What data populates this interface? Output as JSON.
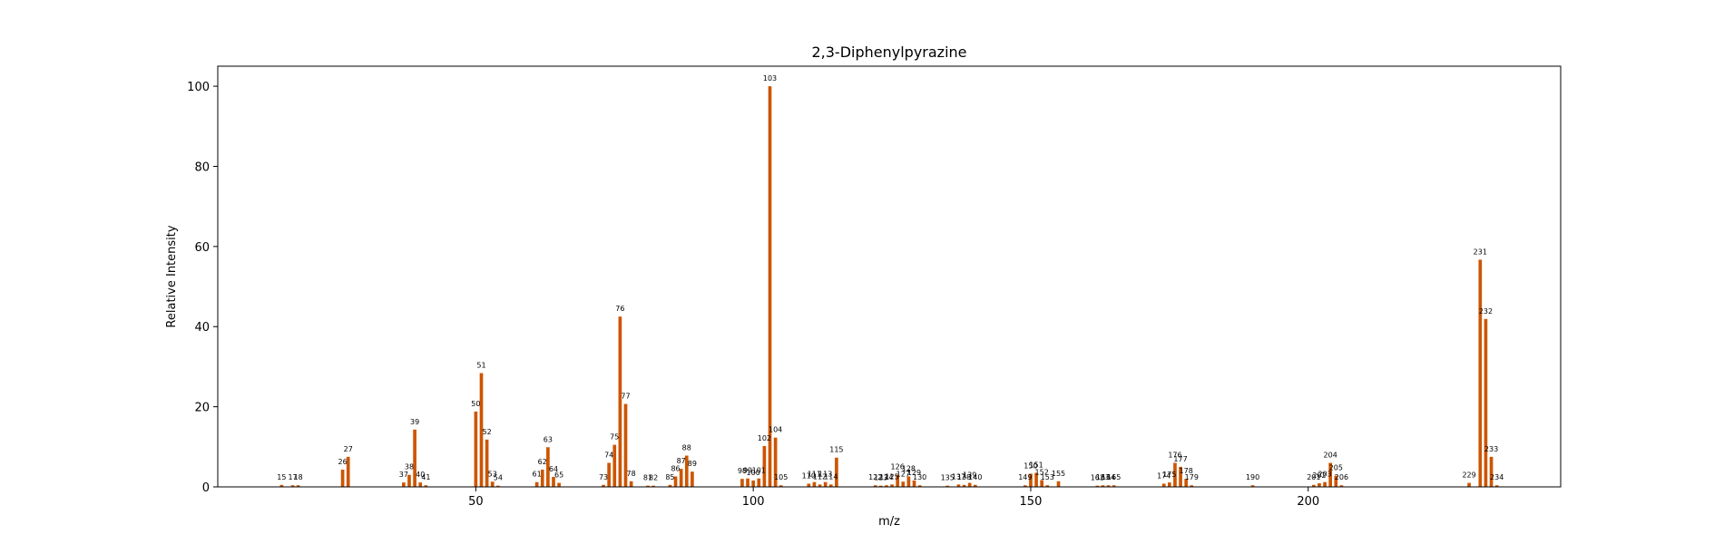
{
  "chart_data": {
    "type": "bar",
    "title": "2,3-Diphenylpyrazine",
    "xlabel": "m/z",
    "ylabel": "Relative Intensity",
    "xlim": [
      3.5,
      245.5
    ],
    "ylim": [
      0,
      105
    ],
    "xticks": [
      50,
      100,
      150,
      200
    ],
    "yticks": [
      0,
      20,
      40,
      60,
      80,
      100
    ],
    "bar_color": "#cc5500",
    "grid": false,
    "peaks": [
      {
        "mz": 15,
        "intensity": 0.5,
        "label": "15"
      },
      {
        "mz": 17,
        "intensity": 0.4,
        "label": "17"
      },
      {
        "mz": 18,
        "intensity": 0.4,
        "label": "18"
      },
      {
        "mz": 26,
        "intensity": 4.3,
        "label": "26"
      },
      {
        "mz": 27,
        "intensity": 7.5,
        "label": "27"
      },
      {
        "mz": 37,
        "intensity": 1.1,
        "label": "37"
      },
      {
        "mz": 38,
        "intensity": 3.0,
        "label": "38"
      },
      {
        "mz": 39,
        "intensity": 14.3,
        "label": "39"
      },
      {
        "mz": 40,
        "intensity": 1.1,
        "label": "40"
      },
      {
        "mz": 41,
        "intensity": 0.4,
        "label": "41"
      },
      {
        "mz": 50,
        "intensity": 18.8,
        "label": "50"
      },
      {
        "mz": 51,
        "intensity": 28.4,
        "label": "51"
      },
      {
        "mz": 52,
        "intensity": 11.8,
        "label": "52"
      },
      {
        "mz": 53,
        "intensity": 1.3,
        "label": "53"
      },
      {
        "mz": 54,
        "intensity": 0.3,
        "label": "54"
      },
      {
        "mz": 61,
        "intensity": 1.2,
        "label": "61"
      },
      {
        "mz": 62,
        "intensity": 4.3,
        "label": "62"
      },
      {
        "mz": 63,
        "intensity": 9.9,
        "label": "63"
      },
      {
        "mz": 64,
        "intensity": 2.5,
        "label": "64"
      },
      {
        "mz": 65,
        "intensity": 1.0,
        "label": "65"
      },
      {
        "mz": 73,
        "intensity": 0.5,
        "label": "73"
      },
      {
        "mz": 74,
        "intensity": 6.0,
        "label": "74"
      },
      {
        "mz": 75,
        "intensity": 10.5,
        "label": "75"
      },
      {
        "mz": 76,
        "intensity": 42.5,
        "label": "76"
      },
      {
        "mz": 77,
        "intensity": 20.7,
        "label": "77"
      },
      {
        "mz": 78,
        "intensity": 1.4,
        "label": "78"
      },
      {
        "mz": 81,
        "intensity": 0.3,
        "label": "81"
      },
      {
        "mz": 82,
        "intensity": 0.3,
        "label": "82"
      },
      {
        "mz": 85,
        "intensity": 0.5,
        "label": "85"
      },
      {
        "mz": 86,
        "intensity": 2.6,
        "label": "86"
      },
      {
        "mz": 87,
        "intensity": 4.5,
        "label": "87"
      },
      {
        "mz": 88,
        "intensity": 7.8,
        "label": "88"
      },
      {
        "mz": 89,
        "intensity": 3.8,
        "label": "89"
      },
      {
        "mz": 98,
        "intensity": 2.0,
        "label": "98"
      },
      {
        "mz": 99,
        "intensity": 2.1,
        "label": "99"
      },
      {
        "mz": 100,
        "intensity": 1.6,
        "label": "100"
      },
      {
        "mz": 101,
        "intensity": 2.1,
        "label": "101"
      },
      {
        "mz": 102,
        "intensity": 10.2,
        "label": "102"
      },
      {
        "mz": 103,
        "intensity": 100,
        "label": "103"
      },
      {
        "mz": 104,
        "intensity": 12.3,
        "label": "104"
      },
      {
        "mz": 105,
        "intensity": 0.4,
        "label": "105"
      },
      {
        "mz": 110,
        "intensity": 0.8,
        "label": "110"
      },
      {
        "mz": 111,
        "intensity": 1.2,
        "label": "111"
      },
      {
        "mz": 112,
        "intensity": 0.6,
        "label": "112"
      },
      {
        "mz": 113,
        "intensity": 1.2,
        "label": "113"
      },
      {
        "mz": 114,
        "intensity": 0.6,
        "label": "114"
      },
      {
        "mz": 115,
        "intensity": 7.3,
        "label": "115"
      },
      {
        "mz": 122,
        "intensity": 0.4,
        "label": "122"
      },
      {
        "mz": 123,
        "intensity": 0.3,
        "label": "123"
      },
      {
        "mz": 124,
        "intensity": 0.4,
        "label": "124"
      },
      {
        "mz": 125,
        "intensity": 0.6,
        "label": "125"
      },
      {
        "mz": 126,
        "intensity": 3.0,
        "label": "126"
      },
      {
        "mz": 127,
        "intensity": 1.3,
        "label": "127"
      },
      {
        "mz": 128,
        "intensity": 2.6,
        "label": "128"
      },
      {
        "mz": 129,
        "intensity": 1.6,
        "label": "129"
      },
      {
        "mz": 130,
        "intensity": 0.4,
        "label": "130"
      },
      {
        "mz": 135,
        "intensity": 0.3,
        "label": "135"
      },
      {
        "mz": 137,
        "intensity": 0.6,
        "label": "137"
      },
      {
        "mz": 138,
        "intensity": 0.5,
        "label": "138"
      },
      {
        "mz": 139,
        "intensity": 1.0,
        "label": "139"
      },
      {
        "mz": 140,
        "intensity": 0.5,
        "label": "140"
      },
      {
        "mz": 149,
        "intensity": 0.4,
        "label": "149"
      },
      {
        "mz": 150,
        "intensity": 3.3,
        "label": "150"
      },
      {
        "mz": 151,
        "intensity": 3.5,
        "label": "151"
      },
      {
        "mz": 152,
        "intensity": 1.7,
        "label": "152"
      },
      {
        "mz": 153,
        "intensity": 0.4,
        "label": "153"
      },
      {
        "mz": 155,
        "intensity": 1.4,
        "label": "155"
      },
      {
        "mz": 162,
        "intensity": 0.3,
        "label": "162"
      },
      {
        "mz": 163,
        "intensity": 0.4,
        "label": "163"
      },
      {
        "mz": 164,
        "intensity": 0.4,
        "label": "164"
      },
      {
        "mz": 165,
        "intensity": 0.4,
        "label": "165"
      },
      {
        "mz": 174,
        "intensity": 0.8,
        "label": "174"
      },
      {
        "mz": 175,
        "intensity": 1.1,
        "label": "175"
      },
      {
        "mz": 176,
        "intensity": 6.0,
        "label": "176"
      },
      {
        "mz": 177,
        "intensity": 5.0,
        "label": "177"
      },
      {
        "mz": 178,
        "intensity": 2.0,
        "label": "178"
      },
      {
        "mz": 179,
        "intensity": 0.4,
        "label": "179"
      },
      {
        "mz": 190,
        "intensity": 0.4,
        "label": "190"
      },
      {
        "mz": 201,
        "intensity": 0.5,
        "label": "201"
      },
      {
        "mz": 202,
        "intensity": 0.9,
        "label": "202"
      },
      {
        "mz": 203,
        "intensity": 1.2,
        "label": "203"
      },
      {
        "mz": 204,
        "intensity": 6.0,
        "label": "204"
      },
      {
        "mz": 205,
        "intensity": 2.8,
        "label": "205"
      },
      {
        "mz": 206,
        "intensity": 0.4,
        "label": "206"
      },
      {
        "mz": 229,
        "intensity": 1.0,
        "label": "229"
      },
      {
        "mz": 231,
        "intensity": 56.7,
        "label": "231"
      },
      {
        "mz": 232,
        "intensity": 41.9,
        "label": "232"
      },
      {
        "mz": 233,
        "intensity": 7.5,
        "label": "233"
      },
      {
        "mz": 234,
        "intensity": 0.4,
        "label": "234"
      }
    ]
  }
}
